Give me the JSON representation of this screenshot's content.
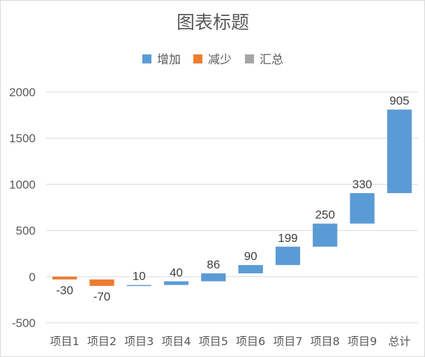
{
  "chart_data": {
    "type": "bar",
    "subtype": "waterfall",
    "title": "图表标题",
    "legend": {
      "position": "top",
      "items": [
        {
          "label": "增加",
          "color": "#5b9bd5"
        },
        {
          "label": "减少",
          "color": "#ed7d31"
        },
        {
          "label": "汇总",
          "color": "#a5a5a5"
        }
      ]
    },
    "categories": [
      "项目1",
      "项目2",
      "项目3",
      "项目4",
      "项目5",
      "项目6",
      "项目7",
      "项目8",
      "项目9",
      "总计"
    ],
    "bars": [
      {
        "category": "项目1",
        "label": "-30",
        "base": 0,
        "top": -30,
        "kind": "decrease"
      },
      {
        "category": "项目2",
        "label": "-70",
        "base": -30,
        "top": -100,
        "kind": "decrease"
      },
      {
        "category": "项目3",
        "label": "10",
        "base": -100,
        "top": -90,
        "kind": "increase"
      },
      {
        "category": "项目4",
        "label": "40",
        "base": -90,
        "top": -50,
        "kind": "increase"
      },
      {
        "category": "项目5",
        "label": "86",
        "base": -50,
        "top": 36,
        "kind": "increase"
      },
      {
        "category": "项目6",
        "label": "90",
        "base": 36,
        "top": 126,
        "kind": "increase"
      },
      {
        "category": "项目7",
        "label": "199",
        "base": 126,
        "top": 325,
        "kind": "increase"
      },
      {
        "category": "项目8",
        "label": "250",
        "base": 325,
        "top": 575,
        "kind": "increase"
      },
      {
        "category": "项目9",
        "label": "330",
        "base": 575,
        "top": 905,
        "kind": "increase"
      },
      {
        "category": "总计",
        "label": "905",
        "base": 905,
        "top": 1810,
        "kind": "increase"
      }
    ],
    "y_ticks": [
      -500,
      0,
      500,
      1000,
      1500,
      2000
    ],
    "ylim": [
      -500,
      2000
    ],
    "grid": true,
    "xlabel": "",
    "ylabel": ""
  }
}
